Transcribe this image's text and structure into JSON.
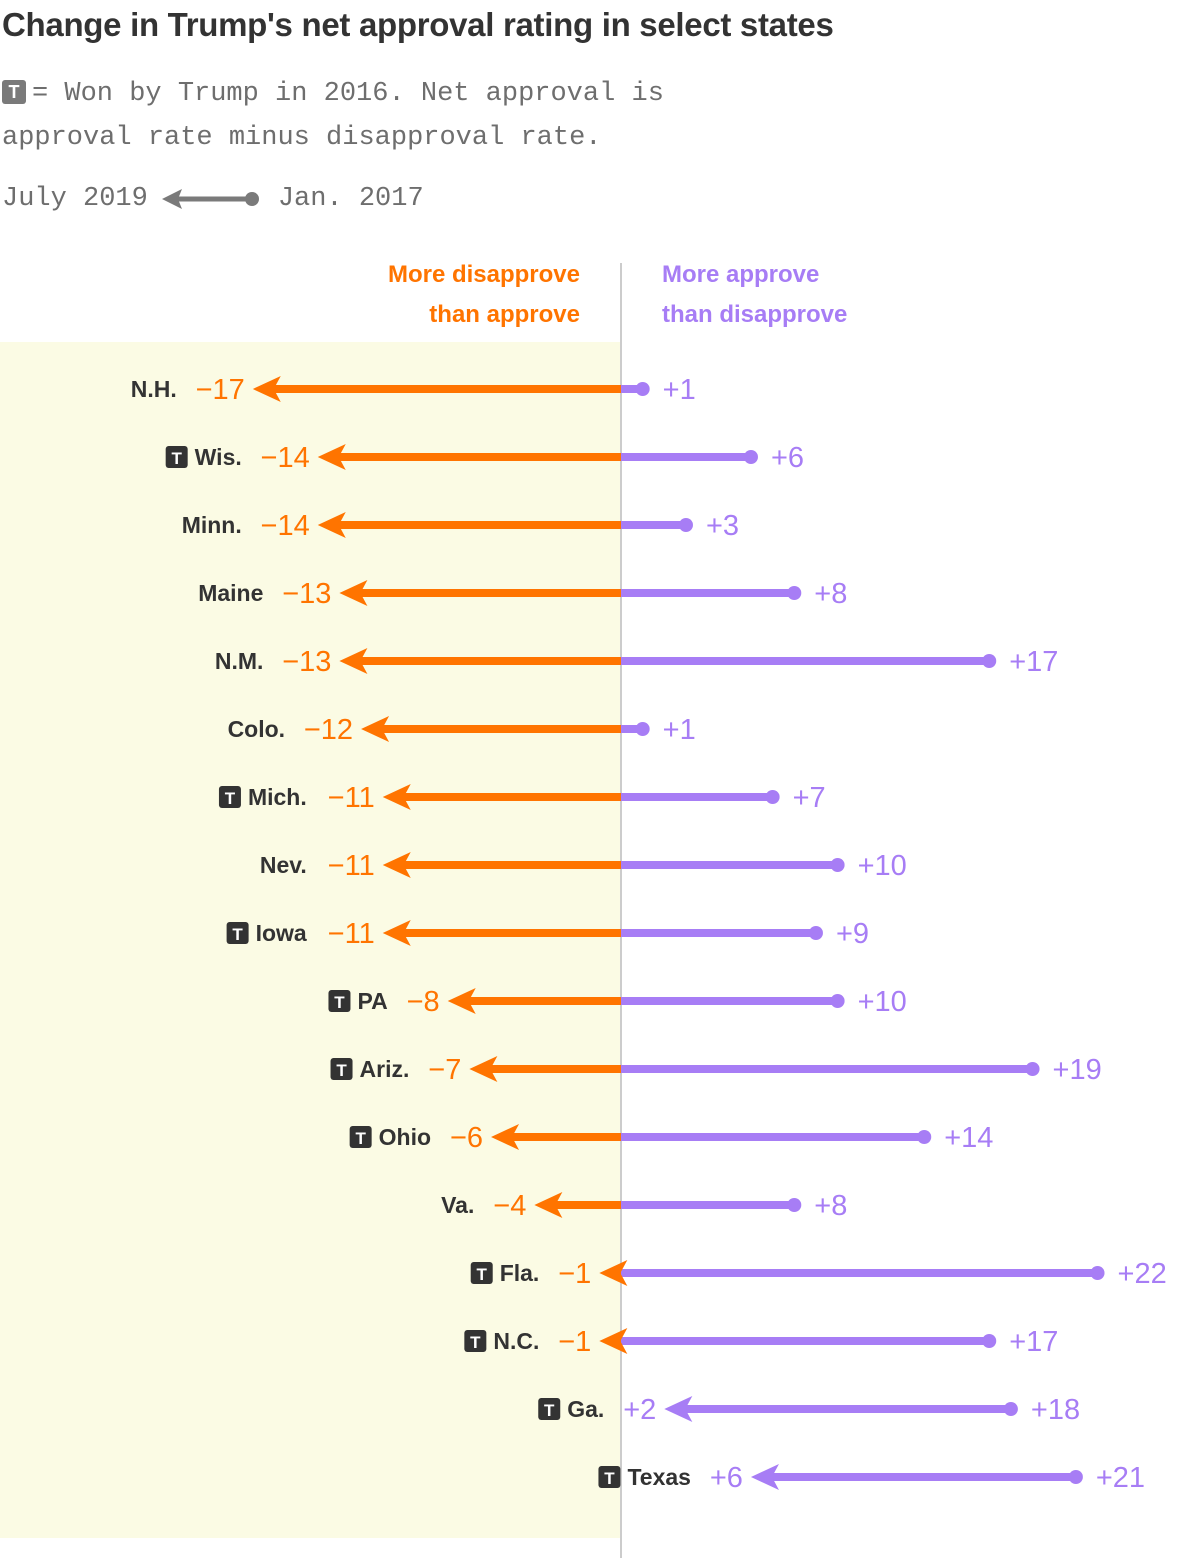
{
  "title": "Change in Trump's net approval rating in select states",
  "subtitle": {
    "badge": "T",
    "text": "= Won by Trump in 2016. Net approval is approval rate minus disapproval rate."
  },
  "legend": {
    "left_label": "July 2019",
    "right_label": "Jan. 2017"
  },
  "colors": {
    "negative": "#ff7400",
    "positive": "#a77df5",
    "shade": "#fbfbe4",
    "axis": "#cccccc",
    "label": "#333333",
    "badge": "#333333"
  },
  "chart_data": {
    "type": "arrow-dumbbell",
    "title": "Change in Trump's net approval rating in select states",
    "start_label": "Jan. 2017",
    "end_label": "July 2019",
    "negative_header": [
      "More disapprove",
      "than approve"
    ],
    "positive_header": [
      "More approve",
      "than disapprove"
    ],
    "badge_text": "T",
    "rows": [
      {
        "state": "N.H.",
        "trump": false,
        "jan2017": 1,
        "jul2019": -17,
        "jan_label": "+1",
        "jul_label": "−17"
      },
      {
        "state": "Wis.",
        "trump": true,
        "jan2017": 6,
        "jul2019": -14,
        "jan_label": "+6",
        "jul_label": "−14"
      },
      {
        "state": "Minn.",
        "trump": false,
        "jan2017": 3,
        "jul2019": -14,
        "jan_label": "+3",
        "jul_label": "−14"
      },
      {
        "state": "Maine",
        "trump": false,
        "jan2017": 8,
        "jul2019": -13,
        "jan_label": "+8",
        "jul_label": "−13"
      },
      {
        "state": "N.M.",
        "trump": false,
        "jan2017": 17,
        "jul2019": -13,
        "jan_label": "+17",
        "jul_label": "−13"
      },
      {
        "state": "Colo.",
        "trump": false,
        "jan2017": 1,
        "jul2019": -12,
        "jan_label": "+1",
        "jul_label": "−12"
      },
      {
        "state": "Mich.",
        "trump": true,
        "jan2017": 7,
        "jul2019": -11,
        "jan_label": "+7",
        "jul_label": "−11"
      },
      {
        "state": "Nev.",
        "trump": false,
        "jan2017": 10,
        "jul2019": -11,
        "jan_label": "+10",
        "jul_label": "−11"
      },
      {
        "state": "Iowa",
        "trump": true,
        "jan2017": 9,
        "jul2019": -11,
        "jan_label": "+9",
        "jul_label": "−11"
      },
      {
        "state": "PA",
        "trump": true,
        "jan2017": 10,
        "jul2019": -8,
        "jan_label": "+10",
        "jul_label": "−8"
      },
      {
        "state": "Ariz.",
        "trump": true,
        "jan2017": 19,
        "jul2019": -7,
        "jan_label": "+19",
        "jul_label": "−7"
      },
      {
        "state": "Ohio",
        "trump": true,
        "jan2017": 14,
        "jul2019": -6,
        "jan_label": "+14",
        "jul_label": "−6"
      },
      {
        "state": "Va.",
        "trump": false,
        "jan2017": 8,
        "jul2019": -4,
        "jan_label": "+8",
        "jul_label": "−4"
      },
      {
        "state": "Fla.",
        "trump": true,
        "jan2017": 22,
        "jul2019": -1,
        "jan_label": "+22",
        "jul_label": "−1"
      },
      {
        "state": "N.C.",
        "trump": true,
        "jan2017": 17,
        "jul2019": -1,
        "jan_label": "+17",
        "jul_label": "−1"
      },
      {
        "state": "Ga.",
        "trump": true,
        "jan2017": 18,
        "jul2019": 2,
        "jan_label": "+18",
        "jul_label": "+2"
      },
      {
        "state": "Texas",
        "trump": true,
        "jan2017": 21,
        "jul2019": 6,
        "jan_label": "+21",
        "jul_label": "+6"
      }
    ],
    "xlim": [
      -28.7,
      26.7
    ]
  }
}
